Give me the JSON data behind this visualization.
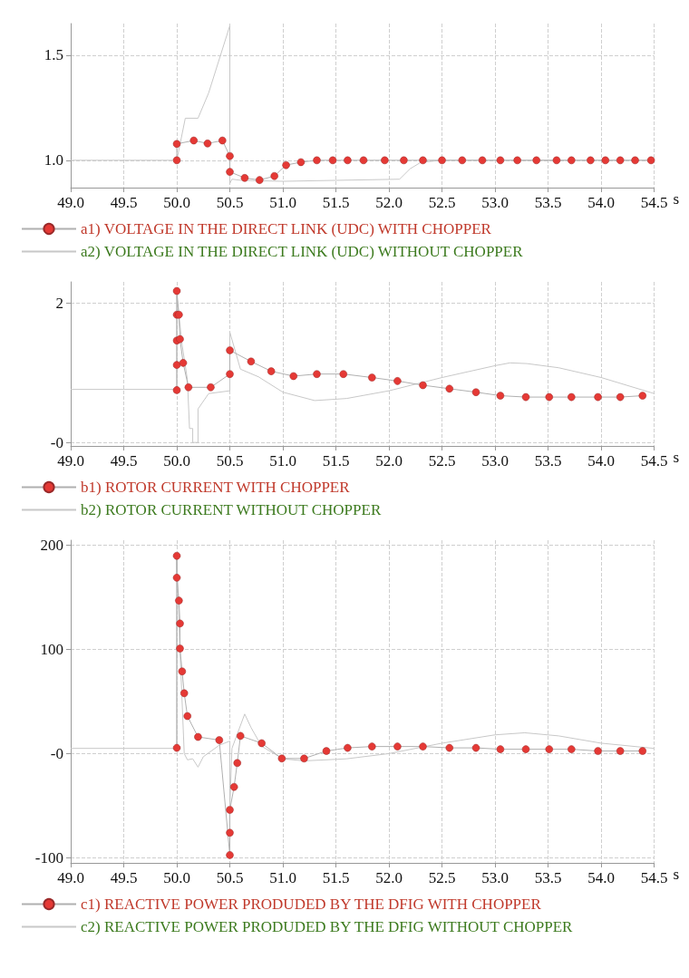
{
  "chart_data": [
    {
      "type": "line",
      "xlabel": "s",
      "xlim": [
        49,
        54.5
      ],
      "ylim": [
        0.87,
        1.65
      ],
      "xticks": [
        {
          "value": 49,
          "label": "49.0"
        },
        {
          "value": 49.5,
          "label": "49.5"
        },
        {
          "value": 50,
          "label": "50.0"
        },
        {
          "value": 50.5,
          "label": "50.5"
        },
        {
          "value": 51,
          "label": "51.0"
        },
        {
          "value": 51.5,
          "label": "51.5"
        },
        {
          "value": 52,
          "label": "52.0"
        },
        {
          "value": 52.5,
          "label": "52.5"
        },
        {
          "value": 53,
          "label": "53.0"
        },
        {
          "value": 53.5,
          "label": "53.5"
        },
        {
          "value": 54,
          "label": "54.0"
        },
        {
          "value": 54.5,
          "label": "54.5"
        }
      ],
      "yticks": [
        {
          "value": 1,
          "label": "1.0"
        },
        {
          "value": 1.5,
          "label": "1.5"
        }
      ],
      "grid": true,
      "legend": "bottom",
      "series": [
        {
          "name": "a1) VOLTAGE IN THE DIRECT LINK (UDC) WITH CHOPPER",
          "color": "#e53935",
          "marker": "circle",
          "x": [
            50.0,
            50.0,
            50.16,
            50.29,
            50.43,
            50.5,
            50.5,
            50.64,
            50.78,
            50.92,
            51.03,
            51.17,
            51.32,
            51.47,
            51.61,
            51.76,
            51.96,
            52.14,
            52.32,
            52.5,
            52.69,
            52.88,
            53.05,
            53.21,
            53.39,
            53.58,
            53.72,
            53.9,
            54.04,
            54.18,
            54.32,
            54.47
          ],
          "values": [
            1.0,
            1.078,
            1.094,
            1.08,
            1.094,
            1.02,
            0.945,
            0.916,
            0.906,
            0.925,
            0.977,
            0.991,
            1.0,
            1.0,
            1.0,
            1.0,
            1.0,
            1.0,
            1.0,
            1.0,
            1.0,
            1.0,
            1.0,
            1.0,
            1.0,
            1.0,
            1.0,
            1.0,
            1.0,
            1.0,
            1.0,
            1.0
          ]
        },
        {
          "name": "a2) VOLTAGE IN THE DIRECT LINK (UDC) WITHOUT CHOPPER",
          "color": "#c8c8c8",
          "marker": "none",
          "x": [
            49,
            50,
            50.08,
            50.2,
            50.3,
            50.5,
            50.5,
            50.52,
            50.6,
            51.0,
            52.1,
            52.2,
            52.3,
            52.5,
            54.5
          ],
          "values": [
            1.0,
            1.0,
            1.2,
            1.2,
            1.32,
            1.64,
            0.89,
            0.91,
            0.905,
            0.9,
            0.91,
            0.96,
            0.99,
            1.0,
            1.0
          ]
        }
      ]
    },
    {
      "type": "line",
      "xlabel": "s",
      "xlim": [
        49,
        54.5
      ],
      "ylim": [
        -0.05,
        2.3
      ],
      "xticks": [
        {
          "value": 49,
          "label": "49.0"
        },
        {
          "value": 49.5,
          "label": "49.5"
        },
        {
          "value": 50,
          "label": "50.0"
        },
        {
          "value": 50.5,
          "label": "50.5"
        },
        {
          "value": 51,
          "label": "51.0"
        },
        {
          "value": 51.5,
          "label": "51.5"
        },
        {
          "value": 52,
          "label": "52.0"
        },
        {
          "value": 52.5,
          "label": "52.5"
        },
        {
          "value": 53,
          "label": "53.0"
        },
        {
          "value": 53.5,
          "label": "53.5"
        },
        {
          "value": 54,
          "label": "54.0"
        },
        {
          "value": 54.5,
          "label": "54.5"
        }
      ],
      "yticks": [
        {
          "value": 0,
          "label": "-0"
        },
        2
      ],
      "grid": true,
      "legend": "bottom",
      "series": [
        {
          "name": "b1) ROTOR CURRENT WITH CHOPPER",
          "color": "#e53935",
          "marker": "circle",
          "x": [
            50.0,
            50.0,
            50.0,
            50.0,
            50.0,
            50.02,
            50.03,
            50.06,
            50.11,
            50.32,
            50.5,
            50.5,
            50.7,
            50.89,
            51.1,
            51.32,
            51.57,
            51.84,
            52.08,
            52.32,
            52.57,
            52.82,
            53.05,
            53.29,
            53.51,
            53.72,
            53.97,
            54.18,
            54.39
          ],
          "values": [
            0.75,
            1.11,
            1.46,
            1.83,
            2.17,
            1.83,
            1.48,
            1.14,
            0.79,
            0.79,
            0.98,
            1.32,
            1.16,
            1.02,
            0.95,
            0.98,
            0.98,
            0.93,
            0.88,
            0.82,
            0.77,
            0.72,
            0.67,
            0.65,
            0.65,
            0.65,
            0.65,
            0.65,
            0.67
          ]
        },
        {
          "name": "b2) ROTOR CURRENT WITHOUT CHOPPER",
          "color": "#c8c8c8",
          "marker": "none",
          "x": [
            49,
            50.0,
            50.0,
            50.05,
            50.1,
            50.12,
            50.15,
            50.15,
            50.2,
            50.2,
            50.3,
            50.5,
            50.5,
            50.6,
            50.77,
            51.0,
            51.3,
            51.6,
            52.0,
            52.5,
            53.0,
            53.14,
            53.3,
            53.6,
            54.0,
            54.5
          ],
          "values": [
            0.76,
            0.76,
            2.1,
            1.4,
            0.9,
            0.2,
            0.2,
            0.0,
            0.0,
            0.48,
            0.7,
            0.74,
            1.58,
            1.05,
            0.94,
            0.72,
            0.6,
            0.63,
            0.74,
            0.93,
            1.1,
            1.14,
            1.13,
            1.07,
            0.93,
            0.7
          ]
        }
      ]
    },
    {
      "type": "line",
      "xlabel": "s",
      "xlim": [
        49,
        54.5
      ],
      "ylim": [
        -105,
        205
      ],
      "xticks": [
        {
          "value": 49,
          "label": "49.0"
        },
        {
          "value": 49.5,
          "label": "49.5"
        },
        {
          "value": 50,
          "label": "50.0"
        },
        {
          "value": 50.5,
          "label": "50.5"
        },
        {
          "value": 51,
          "label": "51.0"
        },
        {
          "value": 51.5,
          "label": "51.5"
        },
        {
          "value": 52,
          "label": "52.0"
        },
        {
          "value": 52.5,
          "label": "52.5"
        },
        {
          "value": 53,
          "label": "53.0"
        },
        {
          "value": 53.5,
          "label": "53.5"
        },
        {
          "value": 54,
          "label": "54.0"
        },
        {
          "value": 54.5,
          "label": "54.5"
        }
      ],
      "yticks": [
        -100,
        {
          "value": 0,
          "label": "-0"
        },
        100,
        200
      ],
      "grid": true,
      "legend": "bottom",
      "series": [
        {
          "name": "c1) REACTIVE POWER PRODUDED BY THE DFIG WITH CHOPPER",
          "color": "#e53935",
          "marker": "circle",
          "x": [
            50.0,
            50.0,
            50.0,
            50.02,
            50.03,
            50.03,
            50.05,
            50.07,
            50.1,
            50.2,
            50.4,
            50.5,
            50.5,
            50.5,
            50.54,
            50.57,
            50.6,
            50.8,
            50.99,
            51.2,
            51.41,
            51.61,
            51.84,
            52.08,
            52.32,
            52.57,
            52.82,
            53.05,
            53.29,
            53.51,
            53.72,
            53.97,
            54.18,
            54.39
          ],
          "values": [
            5.5,
            190,
            169,
            147,
            125,
            101,
            79,
            58,
            36,
            16,
            13,
            -97.5,
            -76,
            -54,
            -32,
            -9,
            17,
            10,
            -4.7,
            -4.7,
            2.5,
            5.5,
            6.8,
            6.8,
            6.8,
            5.5,
            5.5,
            4.2,
            4.2,
            4.2,
            4.2,
            2.5,
            2.5,
            2.5
          ]
        },
        {
          "name": "c2) REACTIVE POWER PRODUDED BY THE DFIG WITHOUT CHOPPER",
          "color": "#c8c8c8",
          "marker": "none",
          "x": [
            49,
            50.0,
            50.0,
            50.03,
            50.07,
            50.1,
            50.15,
            50.2,
            50.25,
            50.4,
            50.5,
            50.5,
            50.52,
            50.64,
            50.7,
            50.8,
            51.0,
            51.2,
            51.6,
            52.0,
            52.5,
            53.0,
            53.28,
            53.6,
            54.0,
            54.5
          ],
          "values": [
            5,
            5,
            190,
            100,
            0,
            -6,
            -5,
            -13,
            -3,
            8,
            12,
            -50,
            5,
            38,
            25,
            7,
            -5,
            -7,
            -5,
            0,
            10,
            18,
            20,
            17,
            10,
            5
          ]
        }
      ]
    }
  ]
}
